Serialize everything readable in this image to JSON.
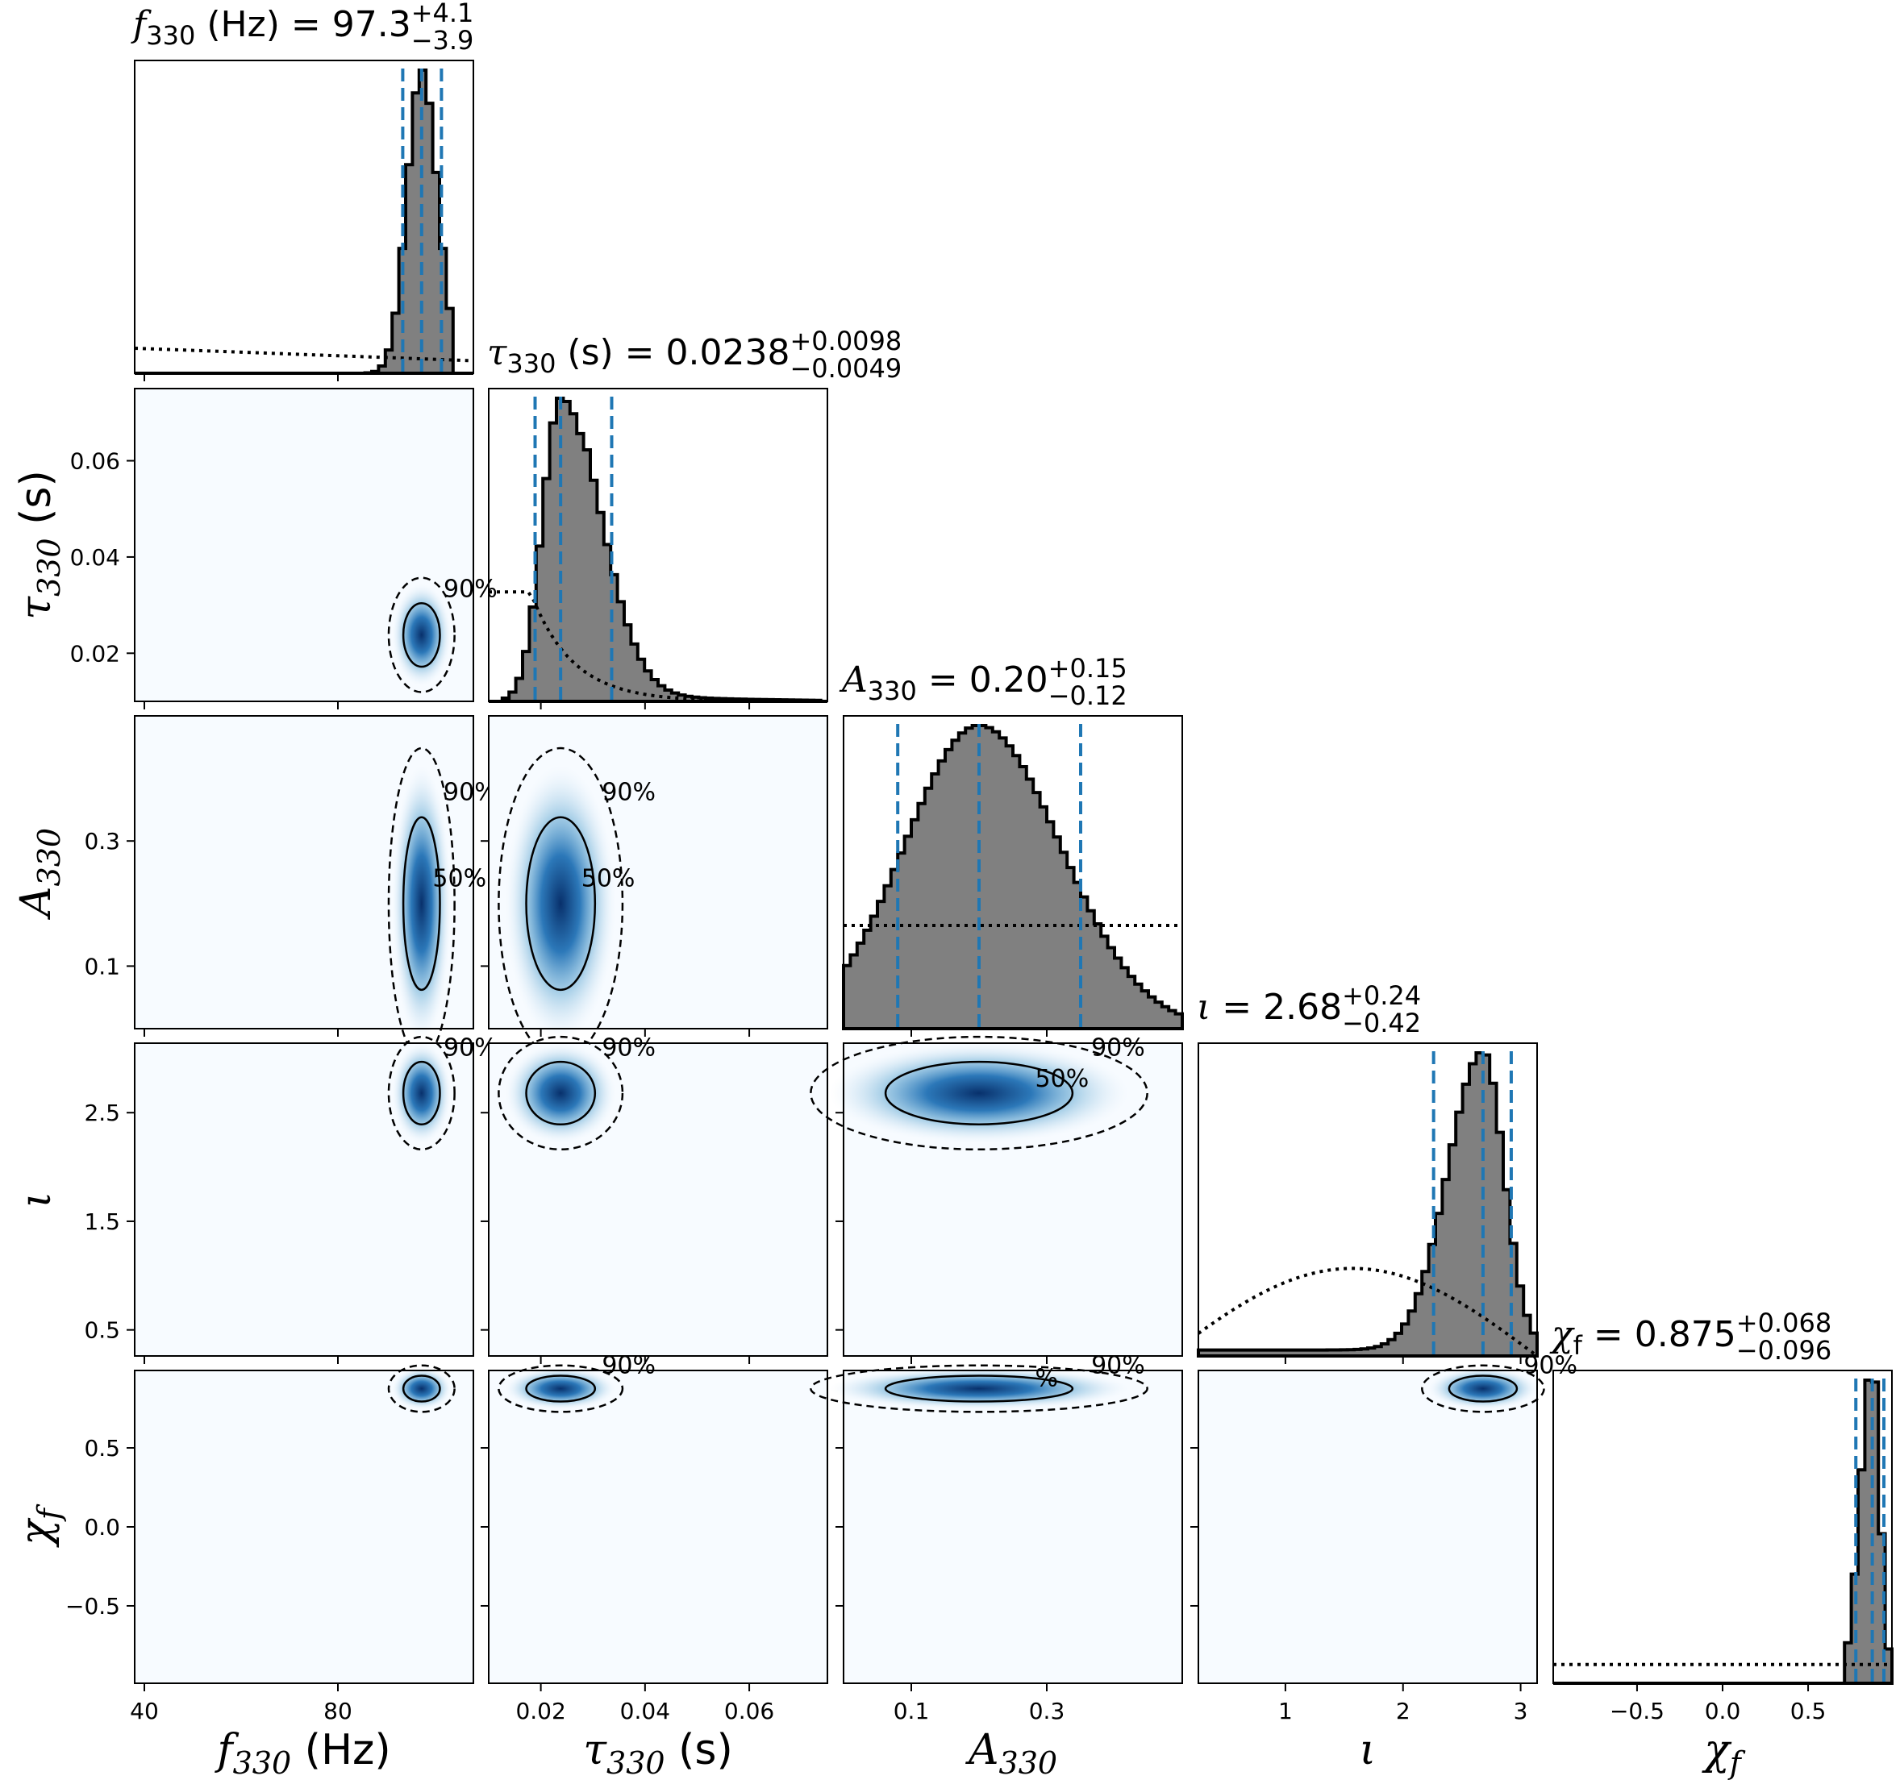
{
  "chart_data": {
    "type": "corner",
    "parameters": [
      {
        "id": "f330",
        "symbol": "f",
        "sub": "330",
        "unit": "(Hz)",
        "range": [
          38,
          108
        ],
        "ticks": [
          {
            "v": 40,
            "label": "40"
          },
          {
            "v": 80,
            "label": "80"
          }
        ],
        "median": 97.3,
        "plus": "+4.1",
        "minus": "−3.9",
        "median_label": "97.3",
        "prior_flat": true
      },
      {
        "id": "tau330",
        "symbol": "τ",
        "sub": "330",
        "unit": "(s)",
        "range": [
          0.01,
          0.075
        ],
        "ticks": [
          {
            "v": 0.02,
            "label": "0.02"
          },
          {
            "v": 0.04,
            "label": "0.04"
          },
          {
            "v": 0.06,
            "label": "0.06"
          }
        ],
        "median": 0.0238,
        "plus": "+0.0098",
        "minus": "−0.0049",
        "median_label": "0.0238"
      },
      {
        "id": "A330",
        "symbol": "A",
        "sub": "330",
        "unit": "",
        "range": [
          0.0,
          0.5
        ],
        "ticks": [
          {
            "v": 0.1,
            "label": "0.1"
          },
          {
            "v": 0.3,
            "label": "0.3"
          }
        ],
        "median": 0.2,
        "plus": "+0.15",
        "minus": "−0.12",
        "median_label": "0.20"
      },
      {
        "id": "iota",
        "symbol": "ι",
        "sub": "",
        "unit": "",
        "range": [
          0.26,
          3.14
        ],
        "ticks": [
          {
            "v": 0.5,
            "label": "0.5"
          },
          {
            "v": 1.5,
            "label": "1.5"
          },
          {
            "v": 2.5,
            "label": "2.5"
          }
        ],
        "xticks": [
          {
            "v": 1,
            "label": "1"
          },
          {
            "v": 2,
            "label": "2"
          },
          {
            "v": 3,
            "label": "3"
          }
        ],
        "median": 2.68,
        "plus": "+0.24",
        "minus": "−0.42",
        "median_label": "2.68"
      },
      {
        "id": "chif",
        "symbol": "χ",
        "sub": "f",
        "unit": "",
        "range": [
          -0.99,
          0.99
        ],
        "ticks": [
          {
            "v": -0.5,
            "label": "−0.5"
          },
          {
            "v": 0.0,
            "label": "0.0"
          },
          {
            "v": 0.5,
            "label": "0.5"
          }
        ],
        "median": 0.875,
        "plus": "+0.068",
        "minus": "−0.096",
        "median_label": "0.875"
      }
    ],
    "posterior_2d": [
      {
        "row": 1,
        "col": 0,
        "cx": 97.3,
        "cy": 0.0238,
        "levels": [
          "90%"
        ]
      },
      {
        "row": 2,
        "col": 0,
        "cx": 97.3,
        "cy": 0.2,
        "levels": [
          "90%",
          "50%"
        ]
      },
      {
        "row": 2,
        "col": 1,
        "cx": 0.0238,
        "cy": 0.2,
        "levels": [
          "90%",
          "50%"
        ]
      },
      {
        "row": 3,
        "col": 0,
        "cx": 97.3,
        "cy": 2.68,
        "levels": [
          "90%"
        ]
      },
      {
        "row": 3,
        "col": 1,
        "cx": 0.0238,
        "cy": 2.68,
        "levels": [
          "90%"
        ]
      },
      {
        "row": 3,
        "col": 2,
        "cx": 0.2,
        "cy": 2.68,
        "levels": [
          "90%",
          "50%"
        ]
      },
      {
        "row": 4,
        "col": 0,
        "cx": 97.3,
        "cy": 0.875,
        "levels": []
      },
      {
        "row": 4,
        "col": 1,
        "cx": 0.0238,
        "cy": 0.875,
        "levels": [
          "90%"
        ]
      },
      {
        "row": 4,
        "col": 2,
        "cx": 0.2,
        "cy": 0.875,
        "levels": [
          "90%",
          "%"
        ]
      },
      {
        "row": 4,
        "col": 3,
        "cx": 2.68,
        "cy": 0.875,
        "levels": [
          "90%"
        ]
      }
    ],
    "colors": {
      "hist_fill": "#808080",
      "quantile_line": "#1f77b4",
      "density": "#08519c",
      "density_low": "#f7fbff"
    }
  }
}
